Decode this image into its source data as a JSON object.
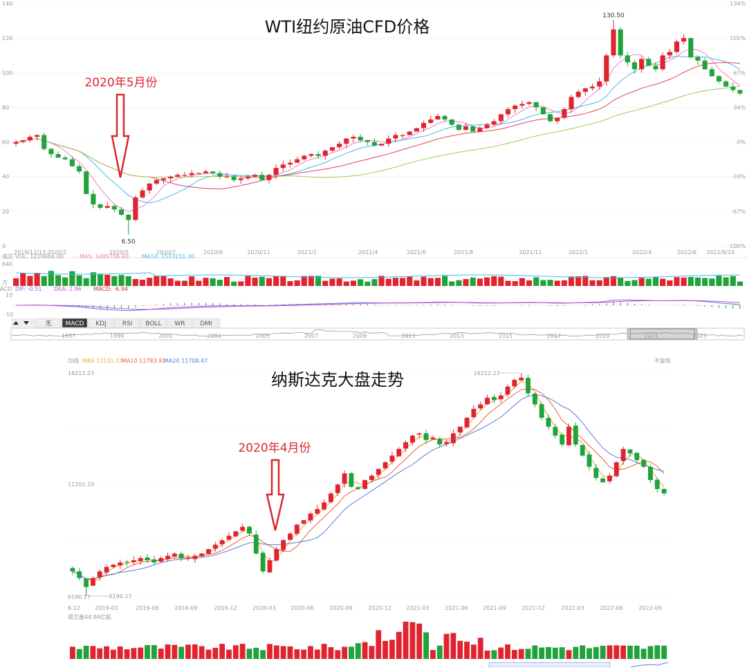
{
  "chart_data": [
    {
      "type": "candlestick",
      "title": "WTI纽约原油CFD价格",
      "annotation": "2020年5月份",
      "ylim": [
        0,
        140
      ],
      "y_ticks": [
        "0",
        "20",
        "40",
        "60",
        "80",
        "100",
        "120",
        "140"
      ],
      "pct_ticks": [
        "134%",
        "101%",
        "67%",
        "34%",
        "0%",
        "-33%",
        "-67%",
        "-100%"
      ],
      "x_ticks": [
        "2019/12/13",
        "2020/2",
        "2020/5",
        "2020/7",
        "2020/9",
        "2020/11",
        "2021/1",
        "2021/4",
        "2021/6",
        "2021/8",
        "2021/11",
        "2022/1",
        "2022/4",
        "2022/6",
        "2022/8/19"
      ],
      "high_label": "130.50",
      "low_label": "6.50",
      "close": [
        60,
        61,
        63,
        64,
        56,
        53,
        51,
        50,
        46,
        43,
        30,
        24,
        22,
        23,
        21,
        18,
        15,
        28,
        32,
        36,
        38,
        39,
        40,
        41,
        41,
        42,
        42,
        43,
        42,
        40,
        40,
        38,
        39,
        40,
        41,
        38,
        41,
        45,
        47,
        48,
        50,
        52,
        53,
        52,
        55,
        57,
        59,
        62,
        63,
        61,
        60,
        58,
        59,
        62,
        64,
        64,
        66,
        68,
        71,
        73,
        75,
        73,
        70,
        67,
        69,
        66,
        68,
        70,
        72,
        76,
        79,
        81,
        82,
        83,
        80,
        76,
        72,
        74,
        79,
        86,
        89,
        91,
        92,
        95,
        110,
        125,
        110,
        106,
        102,
        108,
        104,
        102,
        110,
        112,
        118,
        120,
        109,
        107,
        102,
        98,
        95,
        92,
        90,
        88
      ],
      "ma_lines": [
        "MA5",
        "MA10",
        "MA20",
        "MA60"
      ],
      "volume_header": "VOL: 1220684.00",
      "volume_ma5": "MA5: 1485706.60",
      "volume_ma10": "MA10: 1533251.30",
      "volume_max": "640",
      "volume_unit": "万",
      "macd_dif": "DIF: -0.51",
      "macd_dea": "DEA: 2.96",
      "macd_val": "MACD: -6.94",
      "macd_ticks": [
        "10",
        "-10"
      ],
      "indicator_tabs": [
        "无",
        "MACD",
        "KDJ",
        "RSI",
        "BOLL",
        "WR",
        "DMI"
      ],
      "selected_tab": "MACD",
      "timeline_years": [
        "1997",
        "1999",
        "2001",
        "2003",
        "2005",
        "2007",
        "2009",
        "2011",
        "2013",
        "2015",
        "2017",
        "2019",
        "2021",
        "2023"
      ]
    },
    {
      "type": "candlestick",
      "title": "纳斯达克大盘走势",
      "annotation": "2020年4月份",
      "y_ticks": [
        "16212.23",
        "11201.20",
        "6190.17"
      ],
      "x_ticks": [
        "8-12",
        "2019-03",
        "2019-06",
        "2019-09",
        "2019-12",
        "2020-03",
        "2020-06",
        "2020-09",
        "2020-12",
        "2021-03",
        "2021-06",
        "2021-09",
        "2021-12",
        "2022-03",
        "2022-06",
        "2022-09"
      ],
      "high_label": "16212.23",
      "low_label": "6190.17",
      "close": [
        7300,
        7000,
        6600,
        7000,
        7300,
        7500,
        7600,
        7700,
        7700,
        7800,
        7900,
        7800,
        7700,
        7900,
        8000,
        8100,
        7900,
        7900,
        8000,
        8100,
        8300,
        8500,
        8700,
        8900,
        9100,
        9300,
        9000,
        8100,
        7300,
        7800,
        8300,
        8700,
        9000,
        9400,
        9600,
        9900,
        10100,
        10400,
        10800,
        11200,
        11700,
        11100,
        11000,
        11400,
        11600,
        11900,
        12200,
        12500,
        12800,
        13100,
        13400,
        13500,
        13200,
        13300,
        13000,
        13100,
        13500,
        13800,
        14200,
        14600,
        14800,
        15100,
        15000,
        15200,
        15600,
        15900,
        16000,
        15300,
        14800,
        14200,
        13800,
        13400,
        13000,
        13800,
        13000,
        12500,
        12000,
        11500,
        11300,
        11600,
        12200,
        12800,
        12600,
        12300,
        12000,
        11400,
        11000,
        10800
      ],
      "legend_label": "均线",
      "legend": [
        "MA5 11131.33",
        "MA10 11783.92",
        "MA20 11708.47"
      ],
      "right_label": "不复权",
      "volume_label": "成交量44.84亿股"
    }
  ],
  "colors": {
    "up": "#e0242f",
    "down": "#1fa33a",
    "ma5": "#f07cc0",
    "ma10": "#3dbbe0",
    "ma20": "#e04060",
    "ma60": "#9acb50",
    "nasdaq_ma5": "#f0a030",
    "nasdaq_ma10": "#e0603a",
    "nasdaq_ma20": "#5a78dc",
    "arrow": "#d9262c"
  },
  "icons": [
    "triangle-up-icon",
    "triangle-down-icon",
    "arrow-down-icon"
  ]
}
